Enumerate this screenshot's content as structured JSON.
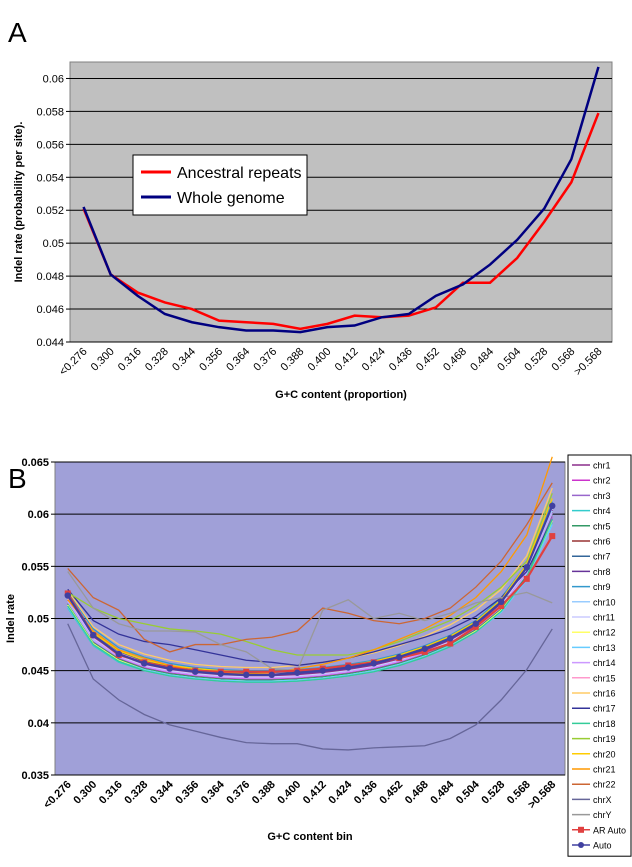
{
  "chart_data": [
    {
      "type": "line",
      "label": "A",
      "x_label": "G+C content (proportion)",
      "y_label": "Indel rate (probability per site).",
      "categories": [
        "<0.276",
        "0.300",
        "0.316",
        "0.328",
        "0.344",
        "0.356",
        "0.364",
        "0.376",
        "0.388",
        "0.400",
        "0.412",
        "0.424",
        "0.436",
        "0.452",
        "0.468",
        "0.484",
        "0.504",
        "0.528",
        "0.568",
        ">0.568"
      ],
      "ylim": [
        0.044,
        0.061
      ],
      "yticks": [
        0.044,
        0.046,
        0.048,
        0.05,
        0.052,
        0.054,
        0.056,
        0.058,
        0.06
      ],
      "grid": true,
      "plot_background": "#c0c0c0",
      "legend": "upper left",
      "series": [
        {
          "name": "Ancestral repeats",
          "color": "#ff0000",
          "values": [
            0.0521,
            0.0481,
            0.047,
            0.0464,
            0.046,
            0.0453,
            0.0452,
            0.0451,
            0.0448,
            0.0451,
            0.0456,
            0.0455,
            0.0456,
            0.0461,
            0.0476,
            0.0476,
            0.0491,
            0.0513,
            0.0537,
            0.0579
          ]
        },
        {
          "name": "Whole genome",
          "color": "#000080",
          "values": [
            0.0522,
            0.0481,
            0.0468,
            0.0457,
            0.0452,
            0.0449,
            0.0447,
            0.0447,
            0.0446,
            0.0449,
            0.045,
            0.0455,
            0.0457,
            0.0468,
            0.0475,
            0.0487,
            0.0502,
            0.0521,
            0.0551,
            0.0607
          ]
        }
      ]
    },
    {
      "type": "line",
      "label": "B",
      "x_label": "G+C content bin",
      "y_label": "Indel rate",
      "categories": [
        "<0.276",
        "0.300",
        "0.316",
        "0.328",
        "0.344",
        "0.356",
        "0.364",
        "0.376",
        "0.388",
        "0.400",
        "0.412",
        "0.424",
        "0.436",
        "0.452",
        "0.468",
        "0.484",
        "0.504",
        "0.528",
        "0.568",
        ">0.568"
      ],
      "ylim": [
        0.035,
        0.065
      ],
      "yticks": [
        0.035,
        0.04,
        0.045,
        0.05,
        0.055,
        0.06,
        0.065
      ],
      "grid": true,
      "plot_background": "#a0a0d8",
      "legend": "right",
      "series": [
        {
          "name": "chr1",
          "color": "#8b2f8b",
          "values": [
            0.052,
            0.0482,
            0.0465,
            0.0456,
            0.0451,
            0.0448,
            0.0446,
            0.0445,
            0.0445,
            0.0446,
            0.0448,
            0.0451,
            0.0455,
            0.0461,
            0.0469,
            0.0479,
            0.0493,
            0.0514,
            0.0547,
            0.0604
          ]
        },
        {
          "name": "chr2",
          "color": "#cc33cc",
          "values": [
            0.0515,
            0.0478,
            0.0462,
            0.0453,
            0.0448,
            0.0445,
            0.0443,
            0.0442,
            0.0442,
            0.0443,
            0.0445,
            0.0448,
            0.0452,
            0.0458,
            0.0466,
            0.0476,
            0.049,
            0.051,
            0.0542,
            0.0598
          ]
        },
        {
          "name": "chr3",
          "color": "#9966cc",
          "values": [
            0.0512,
            0.0476,
            0.046,
            0.0451,
            0.0446,
            0.0443,
            0.0441,
            0.044,
            0.044,
            0.0441,
            0.0443,
            0.0446,
            0.045,
            0.0456,
            0.0464,
            0.0474,
            0.0488,
            0.0508,
            0.054,
            0.0596
          ]
        },
        {
          "name": "chr4",
          "color": "#33cccc",
          "values": [
            0.051,
            0.0474,
            0.0458,
            0.045,
            0.0445,
            0.0442,
            0.044,
            0.0439,
            0.0439,
            0.044,
            0.0442,
            0.0445,
            0.0449,
            0.0455,
            0.0463,
            0.0473,
            0.0487,
            0.0507,
            0.0538,
            0.0592
          ]
        },
        {
          "name": "chr5",
          "color": "#339966",
          "values": [
            0.0514,
            0.0477,
            0.0461,
            0.0452,
            0.0447,
            0.0444,
            0.0442,
            0.0441,
            0.0441,
            0.0442,
            0.0444,
            0.0447,
            0.0451,
            0.0457,
            0.0465,
            0.0475,
            0.0489,
            0.0509,
            0.0541,
            0.06
          ]
        },
        {
          "name": "chr6",
          "color": "#993333",
          "values": [
            0.0518,
            0.048,
            0.0463,
            0.0455,
            0.045,
            0.0447,
            0.0445,
            0.0444,
            0.0444,
            0.0445,
            0.0447,
            0.045,
            0.0454,
            0.046,
            0.0468,
            0.0478,
            0.0492,
            0.0512,
            0.0545,
            0.0602
          ]
        },
        {
          "name": "chr7",
          "color": "#336699",
          "values": [
            0.0524,
            0.0486,
            0.0468,
            0.0459,
            0.0454,
            0.0451,
            0.0449,
            0.0448,
            0.0448,
            0.0449,
            0.0451,
            0.0454,
            0.0458,
            0.0464,
            0.0472,
            0.0482,
            0.0496,
            0.0517,
            0.055,
            0.0608
          ]
        },
        {
          "name": "chr8",
          "color": "#663399",
          "values": [
            0.0521,
            0.0483,
            0.0466,
            0.0457,
            0.0452,
            0.0449,
            0.0447,
            0.0446,
            0.0446,
            0.0447,
            0.0449,
            0.0452,
            0.0456,
            0.0462,
            0.047,
            0.048,
            0.0494,
            0.0515,
            0.0549,
            0.061
          ]
        },
        {
          "name": "chr9",
          "color": "#3399cc",
          "values": [
            0.0526,
            0.049,
            0.0472,
            0.0463,
            0.0457,
            0.0453,
            0.0451,
            0.045,
            0.045,
            0.0451,
            0.0453,
            0.0456,
            0.046,
            0.0466,
            0.0474,
            0.0484,
            0.0498,
            0.052,
            0.0552,
            0.0612
          ]
        },
        {
          "name": "chr10",
          "color": "#99ccff",
          "values": [
            0.0516,
            0.0479,
            0.0463,
            0.0454,
            0.0449,
            0.0446,
            0.0444,
            0.0443,
            0.0443,
            0.0444,
            0.0446,
            0.0449,
            0.0453,
            0.0459,
            0.0467,
            0.0477,
            0.0491,
            0.0511,
            0.0543,
            0.0603
          ]
        },
        {
          "name": "chr11",
          "color": "#ccccff",
          "values": [
            0.0519,
            0.0481,
            0.0464,
            0.0455,
            0.045,
            0.0447,
            0.0445,
            0.0444,
            0.0444,
            0.0445,
            0.0447,
            0.045,
            0.0454,
            0.046,
            0.0468,
            0.0478,
            0.0492,
            0.0513,
            0.0546,
            0.0606
          ]
        },
        {
          "name": "chr12",
          "color": "#ffff66",
          "values": [
            0.0513,
            0.0476,
            0.046,
            0.0451,
            0.0446,
            0.0443,
            0.0441,
            0.044,
            0.044,
            0.0441,
            0.0443,
            0.0446,
            0.045,
            0.0456,
            0.0464,
            0.0474,
            0.0488,
            0.0508,
            0.0539,
            0.0594
          ]
        },
        {
          "name": "chr13",
          "color": "#66ccff",
          "values": [
            0.0511,
            0.0475,
            0.0459,
            0.0451,
            0.0446,
            0.0443,
            0.0441,
            0.044,
            0.044,
            0.0441,
            0.0443,
            0.0446,
            0.045,
            0.0456,
            0.0464,
            0.0474,
            0.0487,
            0.0506,
            0.0537,
            0.059
          ]
        },
        {
          "name": "chr14",
          "color": "#cc99ff",
          "values": [
            0.0517,
            0.048,
            0.0463,
            0.0454,
            0.0449,
            0.0446,
            0.0444,
            0.0443,
            0.0443,
            0.0444,
            0.0446,
            0.0449,
            0.0453,
            0.0459,
            0.0467,
            0.0477,
            0.0491,
            0.0511,
            0.0544,
            0.0601
          ]
        },
        {
          "name": "chr15",
          "color": "#ff99cc",
          "values": [
            0.052,
            0.0484,
            0.0467,
            0.0458,
            0.0453,
            0.045,
            0.0448,
            0.0447,
            0.0447,
            0.0448,
            0.045,
            0.0453,
            0.0457,
            0.0463,
            0.0471,
            0.0481,
            0.0495,
            0.0516,
            0.055,
            0.0609
          ]
        },
        {
          "name": "chr16",
          "color": "#ffcc66",
          "values": [
            0.0527,
            0.0492,
            0.0475,
            0.0466,
            0.046,
            0.0456,
            0.0454,
            0.0453,
            0.0453,
            0.0455,
            0.0458,
            0.0462,
            0.0467,
            0.0474,
            0.0483,
            0.0494,
            0.0508,
            0.0528,
            0.056,
            0.0625
          ]
        },
        {
          "name": "chr17",
          "color": "#333399",
          "values": [
            0.0528,
            0.0498,
            0.0485,
            0.0478,
            0.0475,
            0.047,
            0.0465,
            0.046,
            0.0458,
            0.0455,
            0.0458,
            0.0462,
            0.0468,
            0.0475,
            0.0482,
            0.049,
            0.0502,
            0.052,
            0.0545,
            0.0595
          ]
        },
        {
          "name": "chr18",
          "color": "#33cc99",
          "values": [
            0.0512,
            0.0475,
            0.0459,
            0.045,
            0.0445,
            0.0442,
            0.044,
            0.0439,
            0.0439,
            0.044,
            0.0442,
            0.0445,
            0.0449,
            0.0455,
            0.0463,
            0.0473,
            0.0487,
            0.0507,
            0.0539,
            0.0595
          ]
        },
        {
          "name": "chr19",
          "color": "#99cc33",
          "values": [
            0.0525,
            0.051,
            0.05,
            0.0495,
            0.049,
            0.0488,
            0.0485,
            0.0478,
            0.047,
            0.0465,
            0.0465,
            0.0465,
            0.047,
            0.0478,
            0.0488,
            0.0498,
            0.0512,
            0.053,
            0.0555,
            0.062
          ]
        },
        {
          "name": "chr20",
          "color": "#ffcc00",
          "values": [
            0.0522,
            0.0486,
            0.0469,
            0.046,
            0.0455,
            0.0452,
            0.045,
            0.0449,
            0.0449,
            0.045,
            0.0452,
            0.0455,
            0.0459,
            0.0465,
            0.0473,
            0.0483,
            0.0497,
            0.0518,
            0.0552,
            0.0615
          ]
        },
        {
          "name": "chr21",
          "color": "#ff9900",
          "values": [
            0.0518,
            0.0488,
            0.047,
            0.0462,
            0.0455,
            0.045,
            0.0448,
            0.0447,
            0.0448,
            0.0452,
            0.0456,
            0.0462,
            0.047,
            0.048,
            0.049,
            0.0503,
            0.052,
            0.0545,
            0.058,
            0.0655
          ]
        },
        {
          "name": "chr22",
          "color": "#cc6633",
          "values": [
            0.0548,
            0.052,
            0.0508,
            0.048,
            0.0468,
            0.0475,
            0.0475,
            0.048,
            0.0482,
            0.0488,
            0.051,
            0.0505,
            0.0498,
            0.0495,
            0.05,
            0.051,
            0.053,
            0.0555,
            0.059,
            0.063
          ]
        },
        {
          "name": "chrX",
          "color": "#666699",
          "values": [
            0.0495,
            0.0442,
            0.0422,
            0.0408,
            0.0398,
            0.0392,
            0.0386,
            0.0381,
            0.038,
            0.038,
            0.0375,
            0.0374,
            0.0376,
            0.0377,
            0.0378,
            0.0385,
            0.0398,
            0.0422,
            0.0451,
            0.049
          ]
        },
        {
          "name": "chrY",
          "color": "#999999",
          "values": [
            0.0545,
            0.051,
            0.0495,
            0.0488,
            0.0488,
            0.0487,
            0.0475,
            0.0468,
            0.0452,
            0.045,
            0.0508,
            0.0518,
            0.05,
            0.0505,
            0.0498,
            0.0505,
            0.0515,
            0.052,
            0.0525,
            0.0515
          ]
        },
        {
          "name": "AR Auto",
          "color": "#e04040",
          "marker": "square",
          "values": [
            0.0524,
            0.0484,
            0.0465,
            0.0458,
            0.0453,
            0.045,
            0.0449,
            0.0449,
            0.0449,
            0.045,
            0.0452,
            0.0455,
            0.0458,
            0.0462,
            0.0468,
            0.0476,
            0.0492,
            0.0512,
            0.0538,
            0.0579
          ]
        },
        {
          "name": "Auto",
          "color": "#4040a0",
          "marker": "circle",
          "values": [
            0.0522,
            0.0484,
            0.0466,
            0.0457,
            0.0452,
            0.0449,
            0.0447,
            0.0446,
            0.0446,
            0.0448,
            0.045,
            0.0453,
            0.0457,
            0.0463,
            0.0471,
            0.0481,
            0.0495,
            0.0516,
            0.0549,
            0.0608
          ]
        }
      ]
    }
  ]
}
